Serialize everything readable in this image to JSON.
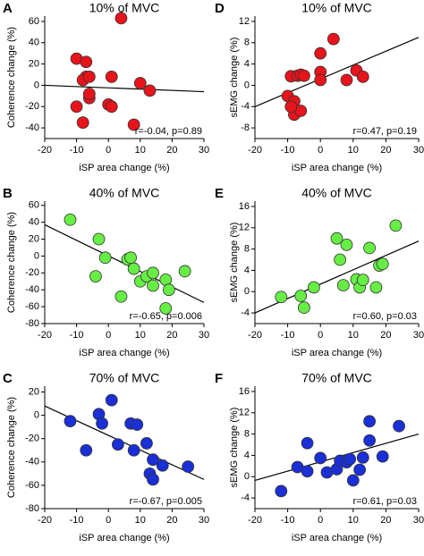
{
  "chart_data": [
    {
      "type": "scatter",
      "panel": "A",
      "title": "10% of MVC",
      "x_label": "iSP area change (%)",
      "y_label": "Coherence change (%)",
      "annotation": "r=-0.04, p=0.89",
      "color": "#e8141b",
      "x": [
        -10,
        -10,
        -7,
        -7,
        -8,
        -6,
        -8,
        -6,
        0,
        1,
        1,
        4,
        8,
        10,
        13,
        -6
      ],
      "values": [
        25,
        -20,
        8,
        22,
        5,
        8,
        -35,
        -12,
        -18,
        -20,
        8,
        63,
        -37,
        2,
        -5,
        -8
      ],
      "trendline": {
        "x": [
          -20,
          30
        ],
        "y": [
          0,
          -6
        ]
      },
      "xlim": [
        -20,
        30
      ],
      "xticks": [
        -20,
        -10,
        0,
        10,
        20,
        30
      ],
      "ylim": [
        -50,
        65
      ],
      "yticks": [
        -40,
        -20,
        0,
        20,
        40,
        60
      ]
    },
    {
      "type": "scatter",
      "panel": "B",
      "title": "40% of MVC",
      "x_label": "iSP area change (%)",
      "y_label": "Coherence change (%)",
      "annotation": "r=-0.65, p=0.006",
      "color": "#66ee44",
      "x": [
        -12,
        -4,
        -3,
        -1,
        4,
        6,
        7,
        8,
        10,
        12,
        14,
        14,
        18,
        18,
        19,
        24
      ],
      "values": [
        43,
        -24,
        20,
        -2,
        -48,
        -4,
        -2,
        -15,
        -30,
        -24,
        -20,
        -35,
        -28,
        -62,
        -40,
        -18
      ],
      "trendline": {
        "x": [
          -20,
          30
        ],
        "y": [
          37,
          -55
        ]
      },
      "xlim": [
        -20,
        30
      ],
      "xticks": [
        -20,
        -10,
        0,
        10,
        20,
        30
      ],
      "ylim": [
        -80,
        65
      ],
      "yticks": [
        -80,
        -60,
        -40,
        -20,
        0,
        20,
        40,
        60
      ]
    },
    {
      "type": "scatter",
      "panel": "C",
      "title": "70% of MVC",
      "x_label": "iSP area change (%)",
      "y_label": "Coherence change (%)",
      "annotation": "r=-0.67, p=0.005",
      "color": "#1a2fd6",
      "x": [
        -12,
        -7,
        -3,
        -2,
        1,
        3,
        7,
        8,
        9,
        12,
        13,
        14,
        14,
        17,
        25
      ],
      "values": [
        -5,
        -30,
        1,
        -7,
        13,
        -25,
        -7,
        -30,
        -8,
        -24,
        -50,
        -38,
        -55,
        -43,
        -44
      ],
      "trendline": {
        "x": [
          -20,
          30
        ],
        "y": [
          8,
          -55
        ]
      },
      "xlim": [
        -20,
        30
      ],
      "xticks": [
        -20,
        -10,
        0,
        10,
        20,
        30
      ],
      "ylim": [
        -80,
        25
      ],
      "yticks": [
        -80,
        -60,
        -40,
        -20,
        0,
        20
      ]
    },
    {
      "type": "scatter",
      "panel": "D",
      "title": "10% of MVC",
      "x_label": "iSP area change (%)",
      "y_label": "sEMG change (%)",
      "annotation": "r=0.47, p=0.19",
      "color": "#e8141b",
      "x": [
        -10,
        -9,
        -8,
        -8,
        -7,
        -6,
        -6,
        -5,
        0,
        0,
        0,
        4,
        8,
        11,
        13,
        -9
      ],
      "values": [
        -2,
        1.7,
        -3,
        -5.5,
        1.8,
        -4.8,
        2,
        1.8,
        6,
        2.5,
        1,
        8.7,
        1,
        2.8,
        1.6,
        -4
      ],
      "trendline": {
        "x": [
          -20,
          30
        ],
        "y": [
          -4,
          9
        ]
      },
      "xlim": [
        -20,
        30
      ],
      "xticks": [
        -20,
        -10,
        0,
        10,
        20,
        30
      ],
      "ylim": [
        -10,
        13
      ],
      "yticks": [
        -8,
        -4,
        0,
        4,
        8,
        12
      ]
    },
    {
      "type": "scatter",
      "panel": "E",
      "title": "40% of MVC",
      "x_label": "iSP area change (%)",
      "y_label": "sEMG change (%)",
      "annotation": "r=0.60, p=0.03",
      "color": "#66ee44",
      "x": [
        -12,
        -6,
        -5,
        -2,
        5,
        6,
        7,
        8,
        11,
        12,
        13,
        15,
        17,
        18,
        19,
        23
      ],
      "values": [
        -1,
        -0.8,
        -3,
        0.8,
        10,
        6,
        1.2,
        8.8,
        2.3,
        0.8,
        2.2,
        8.2,
        0.8,
        4.9,
        5.2,
        12.4
      ],
      "trendline": {
        "x": [
          -20,
          30
        ],
        "y": [
          -4,
          9.5
        ]
      },
      "xlim": [
        -20,
        30
      ],
      "xticks": [
        -20,
        -10,
        0,
        10,
        20,
        30
      ],
      "ylim": [
        -6,
        17
      ],
      "yticks": [
        -4,
        0,
        4,
        8,
        12,
        16
      ]
    },
    {
      "type": "scatter",
      "panel": "F",
      "title": "70% of MVC",
      "x_label": "iSP area change (%)",
      "y_label": "sEMG change (%)",
      "annotation": "r=0.61, p=0.03",
      "color": "#1a2fd6",
      "x": [
        -12,
        -7,
        -4,
        -4,
        0,
        2,
        5,
        6,
        8,
        9,
        10,
        12,
        13,
        15,
        15,
        19,
        24
      ],
      "values": [
        -2.7,
        1.8,
        6.3,
        1,
        3.5,
        0.8,
        1.4,
        3,
        2.7,
        3.3,
        -0.7,
        1.3,
        3.6,
        10.4,
        6.8,
        3.8,
        9.5
      ],
      "trendline": {
        "x": [
          -20,
          30
        ],
        "y": [
          -0.7,
          8
        ]
      },
      "xlim": [
        -20,
        30
      ],
      "xticks": [
        -20,
        -10,
        0,
        10,
        20,
        30
      ],
      "ylim": [
        -6,
        17
      ],
      "yticks": [
        -4,
        0,
        4,
        8,
        12,
        16
      ]
    }
  ]
}
